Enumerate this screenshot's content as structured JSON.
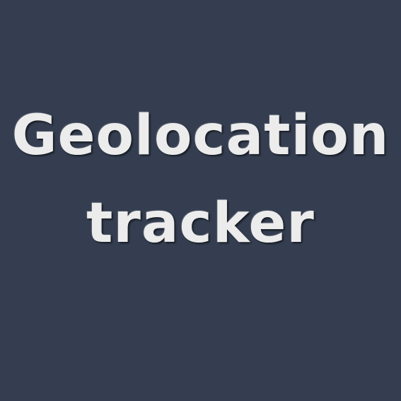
{
  "title": {
    "line1": "Geolocation",
    "line2": "tracker"
  },
  "colors": {
    "background": "#343e50",
    "text": "#ececec"
  }
}
